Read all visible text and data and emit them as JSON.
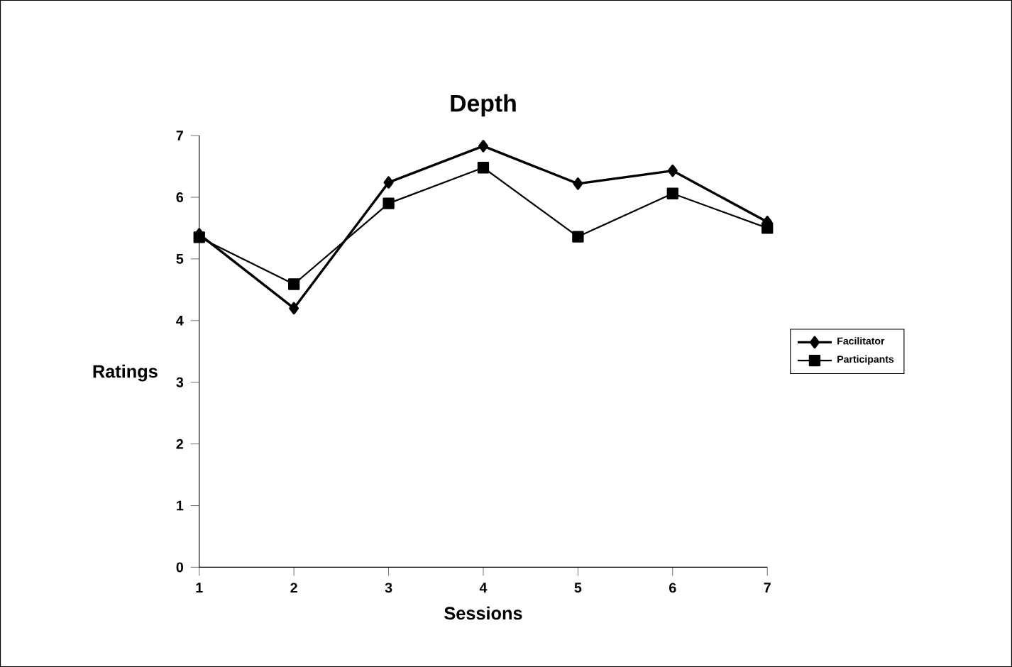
{
  "chart_data": {
    "type": "line",
    "title": "Depth",
    "xlabel": "Sessions",
    "ylabel": "Ratings",
    "x": [
      1,
      2,
      3,
      4,
      5,
      6,
      7
    ],
    "xlim": [
      1,
      7
    ],
    "xticks": [
      1,
      2,
      3,
      4,
      5,
      6,
      7
    ],
    "ylim": [
      0,
      7
    ],
    "yticks": [
      0,
      1,
      2,
      3,
      4,
      5,
      6,
      7
    ],
    "series": [
      {
        "name": "Facilitator",
        "color": "#000000",
        "marker": "diamond",
        "values": [
          5.4,
          4.2,
          6.24,
          6.83,
          6.22,
          6.43,
          5.6
        ]
      },
      {
        "name": "Participants",
        "color": "#000000",
        "marker": "square",
        "values": [
          5.35,
          4.59,
          5.9,
          6.48,
          5.36,
          6.06,
          5.5
        ]
      }
    ],
    "legend": "right",
    "grid": false,
    "line_style": "solid"
  }
}
